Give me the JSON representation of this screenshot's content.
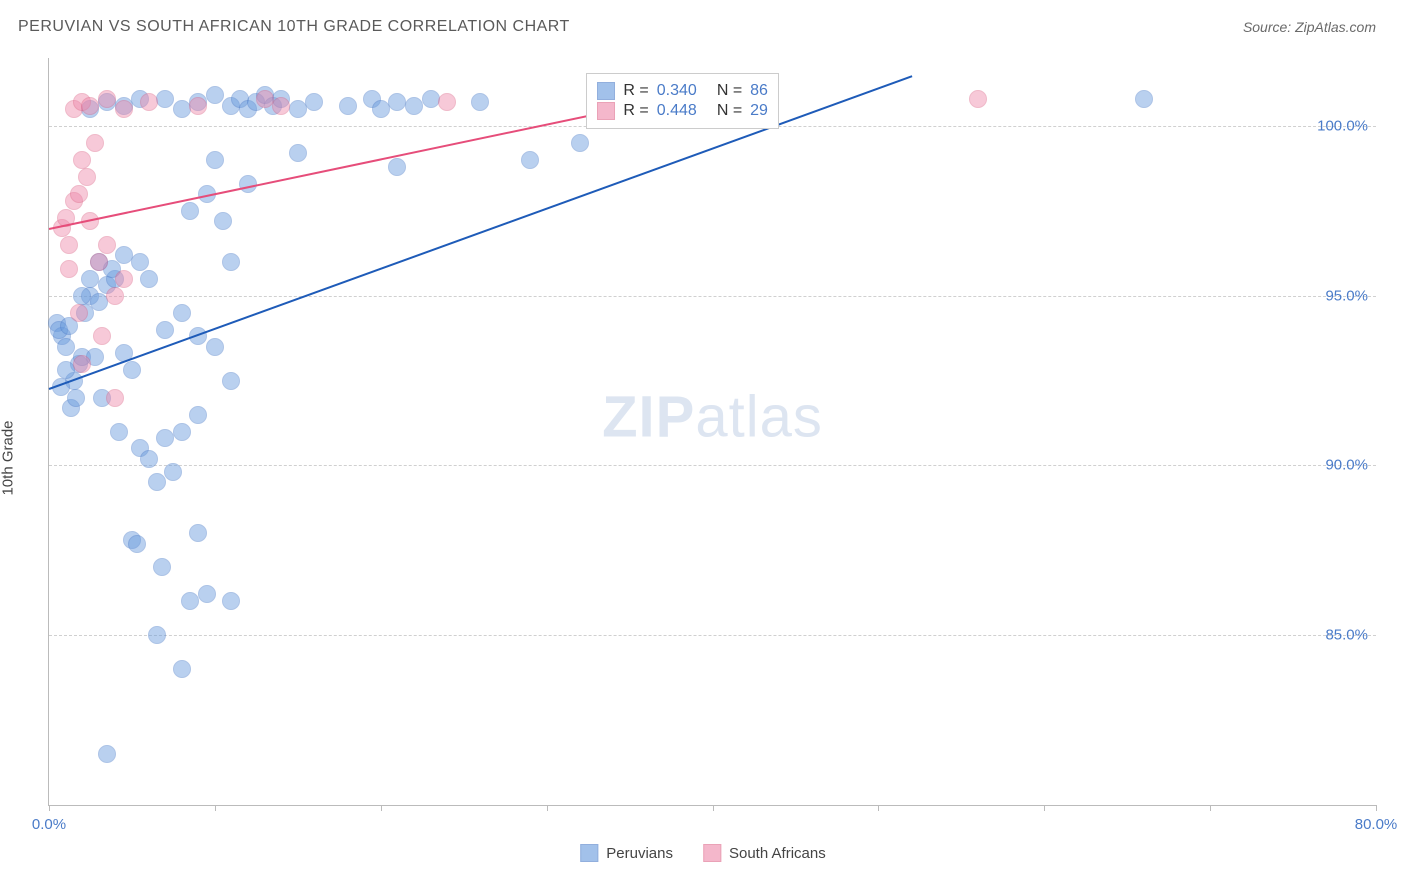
{
  "header": {
    "title": "PERUVIAN VS SOUTH AFRICAN 10TH GRADE CORRELATION CHART",
    "source": "Source: ZipAtlas.com"
  },
  "chart": {
    "type": "scatter",
    "ylabel": "10th Grade",
    "xlim": [
      0,
      80
    ],
    "ylim": [
      80,
      102
    ],
    "xtick_positions": [
      0,
      10,
      20,
      30,
      40,
      50,
      60,
      70,
      80
    ],
    "xtick_labels": [
      "0.0%",
      "",
      "",
      "",
      "",
      "",
      "",
      "",
      "80.0%"
    ],
    "ytick_positions": [
      85,
      90,
      95,
      100
    ],
    "ytick_labels": [
      "85.0%",
      "90.0%",
      "95.0%",
      "100.0%"
    ],
    "ytick_color": "#4a7bc8",
    "xtick_color": "#4a7bc8",
    "grid_color": "#d0d0d0",
    "background_color": "#ffffff",
    "watermark": {
      "zip": "ZIP",
      "atlas": "atlas"
    },
    "point_radius": 9,
    "point_opacity": 0.45,
    "series": [
      {
        "name": "Peruvians",
        "color": "#6699dd",
        "stroke": "#4a7bc8",
        "trend_color": "#1e5bb8",
        "stats": {
          "R": "0.340",
          "N": "86"
        },
        "trend": {
          "x1": 0,
          "y1": 92.3,
          "x2": 52,
          "y2": 101.5
        },
        "points": [
          [
            0.5,
            94.2
          ],
          [
            0.8,
            93.8
          ],
          [
            0.6,
            94.0
          ],
          [
            1.0,
            93.5
          ],
          [
            1.2,
            94.1
          ],
          [
            1.5,
            92.5
          ],
          [
            1.8,
            93.0
          ],
          [
            2.0,
            93.2
          ],
          [
            1.0,
            92.8
          ],
          [
            0.7,
            92.3
          ],
          [
            1.3,
            91.7
          ],
          [
            1.6,
            92.0
          ],
          [
            2.2,
            94.5
          ],
          [
            2.5,
            95.0
          ],
          [
            3.0,
            94.8
          ],
          [
            3.5,
            95.3
          ],
          [
            4.0,
            95.5
          ],
          [
            2.8,
            93.2
          ],
          [
            3.2,
            92.0
          ],
          [
            4.5,
            93.3
          ],
          [
            5.0,
            92.8
          ],
          [
            4.2,
            91.0
          ],
          [
            5.5,
            90.5
          ],
          [
            6.0,
            90.2
          ],
          [
            6.5,
            89.5
          ],
          [
            7.0,
            90.8
          ],
          [
            8.0,
            91.0
          ],
          [
            7.5,
            89.8
          ],
          [
            5.0,
            87.8
          ],
          [
            5.3,
            87.7
          ],
          [
            6.8,
            87.0
          ],
          [
            8.5,
            86.0
          ],
          [
            9.5,
            86.2
          ],
          [
            11.0,
            86.0
          ],
          [
            9.0,
            88.0
          ],
          [
            3.5,
            81.5
          ],
          [
            6.5,
            85.0
          ],
          [
            2.0,
            95.0
          ],
          [
            2.5,
            95.5
          ],
          [
            3.0,
            96.0
          ],
          [
            3.8,
            95.8
          ],
          [
            4.5,
            96.2
          ],
          [
            5.5,
            96.0
          ],
          [
            6.0,
            95.5
          ],
          [
            7.0,
            94.0
          ],
          [
            8.0,
            94.5
          ],
          [
            9.0,
            93.8
          ],
          [
            10.0,
            93.5
          ],
          [
            11.0,
            96.0
          ],
          [
            8.5,
            97.5
          ],
          [
            9.5,
            98.0
          ],
          [
            10.5,
            97.2
          ],
          [
            12.0,
            98.3
          ],
          [
            7.0,
            100.8
          ],
          [
            8.0,
            100.5
          ],
          [
            9.0,
            100.7
          ],
          [
            10.0,
            100.9
          ],
          [
            11.0,
            100.6
          ],
          [
            11.5,
            100.8
          ],
          [
            12.0,
            100.5
          ],
          [
            12.5,
            100.7
          ],
          [
            13.0,
            100.9
          ],
          [
            13.5,
            100.6
          ],
          [
            14.0,
            100.8
          ],
          [
            15.0,
            100.5
          ],
          [
            16.0,
            100.7
          ],
          [
            18.0,
            100.6
          ],
          [
            19.5,
            100.8
          ],
          [
            20.0,
            100.5
          ],
          [
            21.0,
            100.7
          ],
          [
            22.0,
            100.6
          ],
          [
            23.0,
            100.8
          ],
          [
            26.0,
            100.7
          ],
          [
            2.5,
            100.5
          ],
          [
            3.5,
            100.7
          ],
          [
            4.5,
            100.6
          ],
          [
            5.5,
            100.8
          ],
          [
            10.0,
            99.0
          ],
          [
            15.0,
            99.2
          ],
          [
            21.0,
            98.8
          ],
          [
            29.0,
            99.0
          ],
          [
            32.0,
            99.5
          ],
          [
            66.0,
            100.8
          ],
          [
            9.0,
            91.5
          ],
          [
            11.0,
            92.5
          ],
          [
            8.0,
            84.0
          ]
        ]
      },
      {
        "name": "South Africans",
        "color": "#ee88aa",
        "stroke": "#dd6688",
        "trend_color": "#e64d7a",
        "stats": {
          "R": "0.448",
          "N": "29"
        },
        "trend": {
          "x1": 0,
          "y1": 97.0,
          "x2": 42,
          "y2": 101.3
        },
        "points": [
          [
            0.8,
            97.0
          ],
          [
            1.0,
            97.3
          ],
          [
            1.2,
            96.5
          ],
          [
            1.5,
            97.8
          ],
          [
            1.8,
            98.0
          ],
          [
            2.0,
            99.0
          ],
          [
            2.3,
            98.5
          ],
          [
            2.5,
            97.2
          ],
          [
            2.8,
            99.5
          ],
          [
            3.0,
            96.0
          ],
          [
            3.5,
            96.5
          ],
          [
            4.0,
            95.0
          ],
          [
            4.5,
            95.5
          ],
          [
            1.2,
            95.8
          ],
          [
            1.8,
            94.5
          ],
          [
            3.2,
            93.8
          ],
          [
            2.0,
            93.0
          ],
          [
            1.5,
            100.5
          ],
          [
            2.0,
            100.7
          ],
          [
            2.5,
            100.6
          ],
          [
            3.5,
            100.8
          ],
          [
            4.5,
            100.5
          ],
          [
            6.0,
            100.7
          ],
          [
            9.0,
            100.6
          ],
          [
            13.0,
            100.8
          ],
          [
            14.0,
            100.6
          ],
          [
            24.0,
            100.7
          ],
          [
            56.0,
            100.8
          ],
          [
            4.0,
            92.0
          ]
        ]
      }
    ],
    "legend_box": {
      "left_pct": 40.5,
      "top_pct": 2,
      "label_R": "R =",
      "label_N": "N =",
      "text_color": "#4a7bc8"
    },
    "bottom_legend": {
      "items": [
        "Peruvians",
        "South Africans"
      ]
    }
  }
}
